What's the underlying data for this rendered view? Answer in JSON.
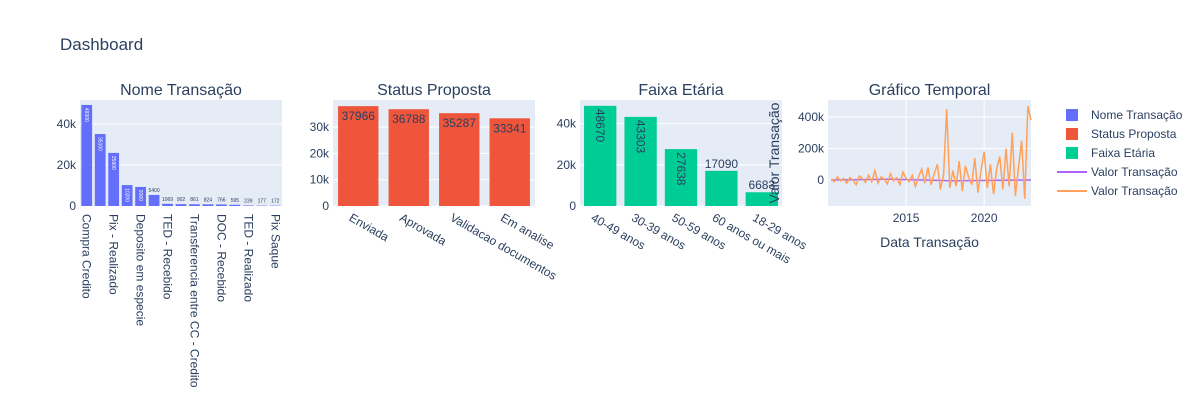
{
  "title": "Dashboard",
  "chart_data": [
    {
      "type": "bar",
      "title": "Nome Transação",
      "color": "#636EFA",
      "categories": [
        "Compra Credito",
        null,
        "Pix - Realizado",
        null,
        "Deposito em especie",
        null,
        "TED - Recebido",
        null,
        "Transferencia entre CC - Credito",
        null,
        "DOC - Recebido",
        null,
        "TED - Realizado",
        null,
        "Pix Saque"
      ],
      "values": [
        49300,
        35100,
        25900,
        10200,
        9300,
        5400,
        1069,
        902,
        861,
        824,
        766,
        595,
        239,
        177,
        172
      ],
      "ylim": [
        0,
        51700
      ],
      "yticks": [
        0,
        {
          "value": 20000,
          "label": "20k"
        },
        {
          "value": 40000,
          "label": "40k"
        }
      ]
    },
    {
      "type": "bar",
      "title": "Status Proposta",
      "color": "#EF553B",
      "categories": [
        "Enviada",
        "Aprovada",
        "Validacao documentos",
        "Em analise"
      ],
      "values": [
        37966,
        36788,
        35287,
        33341
      ],
      "ylim": [
        0,
        40300
      ],
      "yticks": [
        0,
        {
          "value": 10000,
          "label": "10k"
        },
        {
          "value": 20000,
          "label": "20k"
        },
        {
          "value": 30000,
          "label": "30k"
        }
      ]
    },
    {
      "type": "bar",
      "title": "Faixa Etária",
      "color": "#00CC96",
      "categories": [
        "40-49 anos",
        "30-39 anos",
        "50-59 anos",
        "60 anos ou mais",
        "18-29 anos"
      ],
      "values": [
        48670,
        43303,
        27638,
        17090,
        6683
      ],
      "ylim": [
        0,
        51500
      ],
      "yticks": [
        0,
        {
          "value": 20000,
          "label": "20k"
        },
        {
          "value": 40000,
          "label": "40k"
        }
      ]
    },
    {
      "type": "line",
      "title": "Gráfico Temporal",
      "xlabel": "Data Transação",
      "ylabel": "Valor Transação",
      "xlim": [
        2010,
        2023
      ],
      "xticks": [
        2015,
        2020
      ],
      "ylim": [
        -165000,
        508000
      ],
      "yticks": [
        0,
        {
          "value": 200000,
          "label": "200k"
        },
        {
          "value": 400000,
          "label": "400k"
        }
      ],
      "grid": true,
      "series": [
        {
          "name": "Valor Transação",
          "color": "#AB63FA",
          "x": [
            2010.2,
            2014,
            2018,
            2023
          ],
          "values": [
            0,
            5000,
            -5000,
            0
          ]
        },
        {
          "name": "Valor Transação",
          "color": "#FFA15A",
          "x": [
            2010.2,
            2010.4,
            2010.6,
            2010.8,
            2011.0,
            2011.2,
            2011.4,
            2011.6,
            2011.8,
            2012.0,
            2012.2,
            2012.4,
            2012.6,
            2012.8,
            2013.0,
            2013.2,
            2013.4,
            2013.6,
            2013.8,
            2014.0,
            2014.2,
            2014.4,
            2014.6,
            2014.8,
            2015.0,
            2015.2,
            2015.4,
            2015.6,
            2015.8,
            2016.0,
            2016.2,
            2016.4,
            2016.6,
            2016.8,
            2017.0,
            2017.2,
            2017.4,
            2017.6,
            2017.8,
            2018.0,
            2018.2,
            2018.4,
            2018.6,
            2018.8,
            2019.0,
            2019.2,
            2019.4,
            2019.6,
            2019.8,
            2020.0,
            2020.2,
            2020.4,
            2020.6,
            2020.8,
            2021.0,
            2021.2,
            2021.4,
            2021.6,
            2021.8,
            2022.0,
            2022.2,
            2022.4,
            2022.6,
            2022.8,
            2023.0
          ],
          "values": [
            5000,
            -10000,
            20000,
            -5000,
            10000,
            -20000,
            15000,
            0,
            -30000,
            25000,
            10000,
            -15000,
            30000,
            -10000,
            60000,
            -20000,
            20000,
            5000,
            -25000,
            40000,
            -5000,
            15000,
            -30000,
            50000,
            10000,
            -10000,
            30000,
            -40000,
            20000,
            70000,
            -20000,
            80000,
            -30000,
            40000,
            100000,
            -60000,
            30000,
            450000,
            -50000,
            60000,
            -40000,
            120000,
            -70000,
            90000,
            20000,
            -30000,
            140000,
            -80000,
            60000,
            180000,
            -50000,
            100000,
            -90000,
            70000,
            150000,
            -60000,
            200000,
            -40000,
            300000,
            -100000,
            80000,
            250000,
            -120000,
            470000,
            380000
          ]
        }
      ]
    }
  ]
}
